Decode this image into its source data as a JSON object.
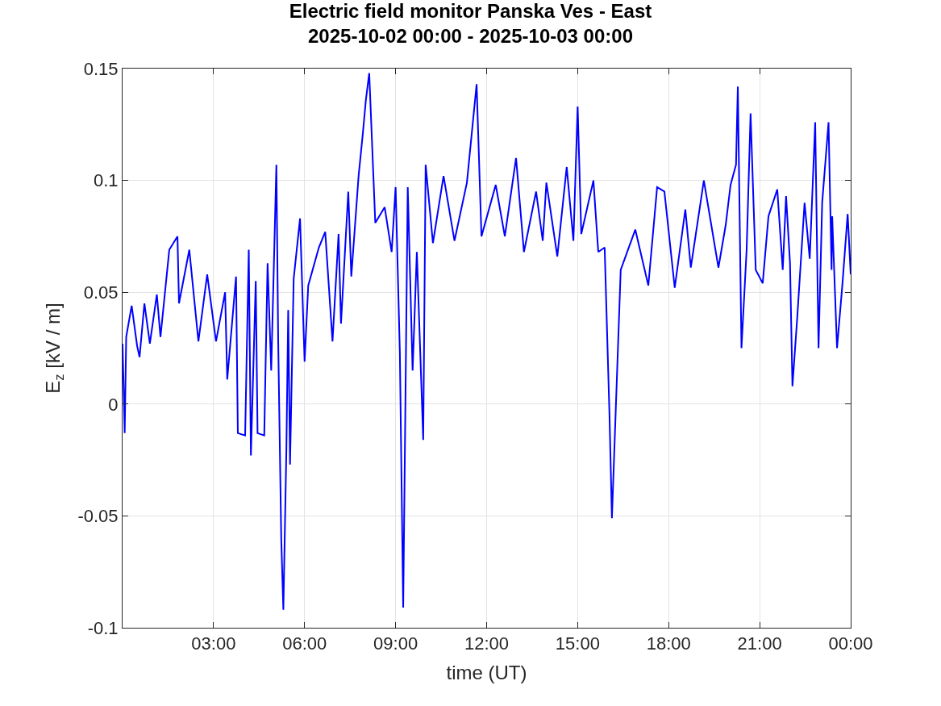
{
  "chart_data": {
    "type": "line",
    "title": "Electric field monitor Panska Ves - East\n2025-10-02 00:00 - 2025-10-03 00:00",
    "xlabel": "time (UT)",
    "ylabel": "E$_{z}$ [kV / m]",
    "x": [
      0,
      0.07,
      0.12,
      0.3,
      0.48,
      0.56,
      0.72,
      0.9,
      1.13,
      1.25,
      1.54,
      1.81,
      1.86,
      2.2,
      2.5,
      2.79,
      3.08,
      3.38,
      3.45,
      3.74,
      3.8,
      4.04,
      4.16,
      4.23,
      4.39,
      4.45,
      4.67,
      4.78,
      4.9,
      5.07,
      5.13,
      5.23,
      5.3,
      5.4,
      5.46,
      5.52,
      5.64,
      5.85,
      6.0,
      6.12,
      6.47,
      6.68,
      6.92,
      7.12,
      7.2,
      7.44,
      7.54,
      7.78,
      7.92,
      8.02,
      8.13,
      8.33,
      8.64,
      8.87,
      9.0,
      9.14,
      9.25,
      9.4,
      9.56,
      9.7,
      9.91,
      9.99,
      10.23,
      10.58,
      10.94,
      11.35,
      11.67,
      11.83,
      12.3,
      12.6,
      12.97,
      13.23,
      13.63,
      13.85,
      13.97,
      14.33,
      14.64,
      14.86,
      15.0,
      15.12,
      15.52,
      15.68,
      15.89,
      16.05,
      16.13,
      16.42,
      16.9,
      17.33,
      17.62,
      17.86,
      18.2,
      18.55,
      18.73,
      19.16,
      19.64,
      19.88,
      20.04,
      20.22,
      20.28,
      20.4,
      20.57,
      20.7,
      20.87,
      21.1,
      21.29,
      21.58,
      21.76,
      21.87,
      22.0,
      22.08,
      22.24,
      22.48,
      22.65,
      22.83,
      22.94,
      23.06,
      23.27,
      23.37,
      23.39,
      23.55,
      23.73,
      23.9,
      24
    ],
    "series": [
      {
        "color": "#0000ff",
        "values": [
          0.027,
          -0.013,
          0.03,
          0.044,
          0.026,
          0.021,
          0.045,
          0.027,
          0.049,
          0.03,
          0.069,
          0.075,
          0.045,
          0.069,
          0.028,
          0.058,
          0.028,
          0.05,
          0.011,
          0.057,
          -0.013,
          -0.014,
          0.069,
          -0.023,
          0.055,
          -0.013,
          -0.014,
          0.063,
          0.015,
          0.107,
          0.028,
          -0.06,
          -0.092,
          -0.02,
          0.042,
          -0.027,
          0.056,
          0.083,
          0.019,
          0.053,
          0.07,
          0.077,
          0.028,
          0.076,
          0.036,
          0.095,
          0.057,
          0.102,
          0.121,
          0.136,
          0.148,
          0.081,
          0.088,
          0.068,
          0.097,
          0.023,
          -0.091,
          0.097,
          0.015,
          0.068,
          -0.016,
          0.107,
          0.072,
          0.102,
          0.073,
          0.099,
          0.143,
          0.075,
          0.098,
          0.075,
          0.11,
          0.068,
          0.095,
          0.073,
          0.099,
          0.066,
          0.106,
          0.073,
          0.133,
          0.076,
          0.1,
          0.068,
          0.07,
          -0.005,
          -0.051,
          0.06,
          0.078,
          0.053,
          0.097,
          0.095,
          0.052,
          0.087,
          0.061,
          0.1,
          0.061,
          0.08,
          0.098,
          0.107,
          0.142,
          0.025,
          0.069,
          0.13,
          0.06,
          0.054,
          0.084,
          0.096,
          0.06,
          0.093,
          0.063,
          0.008,
          0.039,
          0.09,
          0.065,
          0.126,
          0.025,
          0.09,
          0.126,
          0.06,
          0.084,
          0.025,
          0.054,
          0.085,
          0.058
        ]
      }
    ],
    "xlim": [
      0,
      24
    ],
    "xticks": [
      {
        "value": 3,
        "label": "03:00"
      },
      {
        "value": 6,
        "label": "06:00"
      },
      {
        "value": 9,
        "label": "09:00"
      },
      {
        "value": 12,
        "label": "12:00"
      },
      {
        "value": 15,
        "label": "15:00"
      },
      {
        "value": 18,
        "label": "18:00"
      },
      {
        "value": 21,
        "label": "21:00"
      },
      {
        "value": 24,
        "label": "00:00"
      }
    ],
    "ylim": [
      -0.1,
      0.15
    ],
    "yticks": [
      -0.1,
      -0.05,
      0,
      0.05,
      0.1,
      0.15
    ],
    "grid": true,
    "marker": "none",
    "line_style": "solid"
  }
}
